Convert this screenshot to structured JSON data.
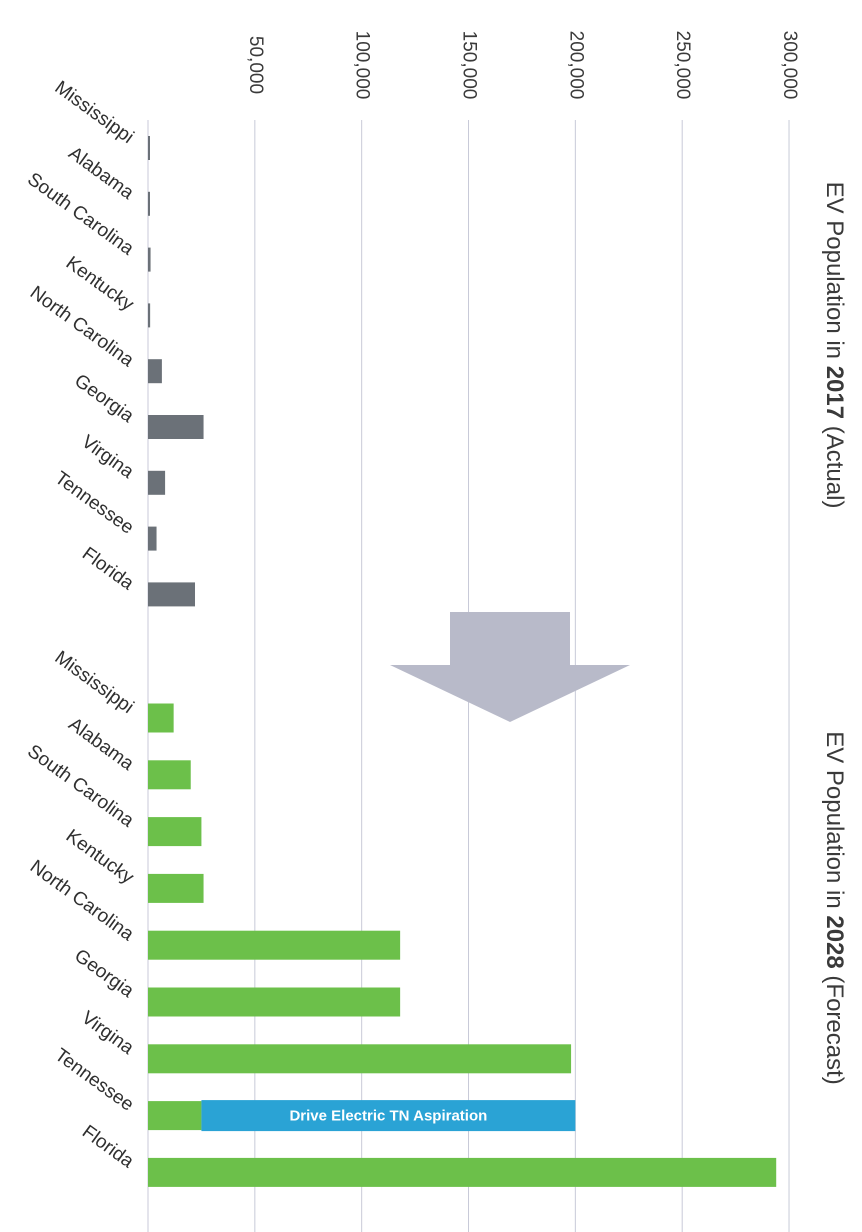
{
  "chart_data": [
    {
      "type": "bar",
      "orientation": "rotated-90-clockwise",
      "title_prefix": "EV Population in ",
      "title_year": "2017",
      "title_suffix": " (Actual)",
      "categories": [
        "Mississippi",
        "Alabama",
        "South Carolina",
        "Kentucky",
        "North Carolina",
        "Georgia",
        "Virgina",
        "Tennessee",
        "Florida"
      ],
      "values": [
        400,
        800,
        1200,
        1000,
        6500,
        26000,
        8000,
        4000,
        22000
      ],
      "color": "#6b7178",
      "ylim": [
        0,
        300000
      ],
      "ticks": [
        "50,000",
        "100,000",
        "150,000",
        "200,000",
        "250,000",
        "300,000"
      ],
      "grid": true
    },
    {
      "type": "bar",
      "orientation": "rotated-90-clockwise",
      "title_prefix": "EV Population in ",
      "title_year": "2028",
      "title_suffix": " (Forecast)",
      "categories": [
        "Mississippi",
        "Alabama",
        "South Carolina",
        "Kentucky",
        "North Carolina",
        "Georgia",
        "Virgina",
        "Tennessee",
        "Florida"
      ],
      "values": [
        12000,
        20000,
        25000,
        26000,
        118000,
        118000,
        198000,
        25000,
        294000
      ],
      "color": "#6cc04a",
      "ylim": [
        0,
        300000
      ],
      "grid": true,
      "annotation": {
        "label": "Drive Electric TN Aspiration",
        "category": "Tennessee",
        "from": 25000,
        "to": 200000,
        "color": "#2aa3d5"
      }
    }
  ]
}
